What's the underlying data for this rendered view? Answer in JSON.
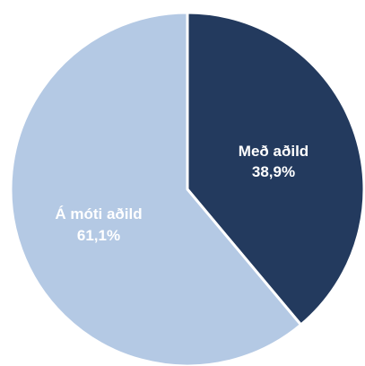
{
  "chart_data": {
    "type": "pie",
    "title": "",
    "slices": [
      {
        "label": "Með aðild",
        "percent_text": "38,9%",
        "value": 38.9,
        "color": "#233a5e"
      },
      {
        "label": "Á móti aðild",
        "percent_text": "61,1%",
        "value": 61.1,
        "color": "#b4c9e4"
      }
    ],
    "start_angle": "12 o'clock",
    "direction": "clockwise",
    "slice_border_color": "#ffffff"
  }
}
